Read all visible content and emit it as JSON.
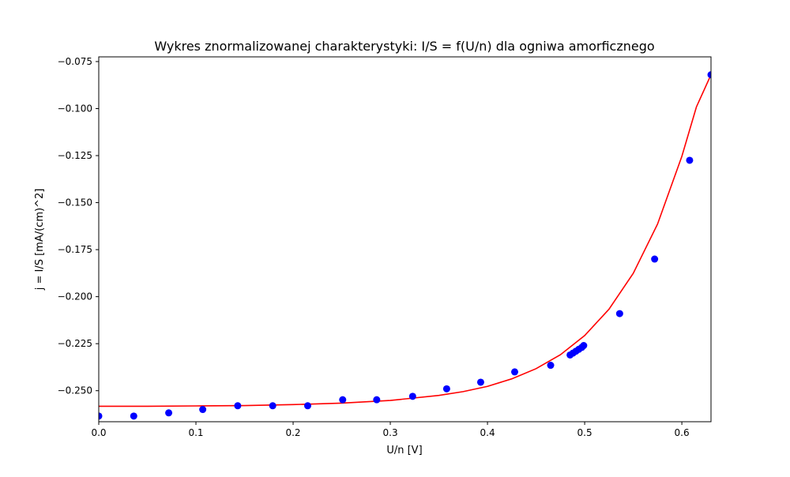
{
  "chart_data": {
    "type": "scatter",
    "title": "Wykres znormalizowanej charakterystyki: I/S = f(U/n) dla ogniwa amorficznego",
    "xlabel": "U/n [V]",
    "ylabel": "j = I/S [mA/(cm)^2]",
    "xlim": [
      0,
      0.63
    ],
    "ylim": [
      -0.2665,
      -0.0725
    ],
    "xticks": [
      0.0,
      0.1,
      0.2,
      0.3,
      0.4,
      0.5,
      0.6
    ],
    "xtick_labels": [
      "0.0",
      "0.1",
      "0.2",
      "0.3",
      "0.4",
      "0.5",
      "0.6"
    ],
    "yticks": [
      -0.25,
      -0.225,
      -0.2,
      -0.175,
      -0.15,
      -0.125,
      -0.1,
      -0.075
    ],
    "ytick_labels": [
      "−0.250",
      "−0.225",
      "−0.200",
      "−0.175",
      "−0.150",
      "−0.125",
      "−0.100",
      "−0.075"
    ],
    "grid": false,
    "series": [
      {
        "kind": "points",
        "color": "#0000ff",
        "x": [
          0.0,
          0.036,
          0.072,
          0.107,
          0.143,
          0.179,
          0.215,
          0.251,
          0.286,
          0.323,
          0.358,
          0.393,
          0.428,
          0.465,
          0.485,
          0.488,
          0.491,
          0.494,
          0.497,
          0.499,
          0.536,
          0.572,
          0.608,
          0.63
        ],
        "y": [
          -0.2635,
          -0.2635,
          -0.2618,
          -0.26,
          -0.258,
          -0.258,
          -0.258,
          -0.2548,
          -0.2548,
          -0.253,
          -0.249,
          -0.2455,
          -0.24,
          -0.2365,
          -0.231,
          -0.23,
          -0.229,
          -0.228,
          -0.227,
          -0.226,
          -0.209,
          -0.18,
          -0.1275,
          -0.082
        ]
      },
      {
        "kind": "fit-curve",
        "color": "#ff0000",
        "x": [
          0.0,
          0.05,
          0.1,
          0.15,
          0.2,
          0.25,
          0.3,
          0.35,
          0.375,
          0.4,
          0.425,
          0.45,
          0.475,
          0.5,
          0.525,
          0.55,
          0.575,
          0.6,
          0.615,
          0.63
        ],
        "y": [
          -0.2583,
          -0.2583,
          -0.2581,
          -0.2579,
          -0.2574,
          -0.2566,
          -0.2552,
          -0.2525,
          -0.2505,
          -0.2477,
          -0.2437,
          -0.2383,
          -0.2309,
          -0.2207,
          -0.2067,
          -0.1876,
          -0.1614,
          -0.1254,
          -0.0991,
          -0.082
        ]
      }
    ]
  }
}
